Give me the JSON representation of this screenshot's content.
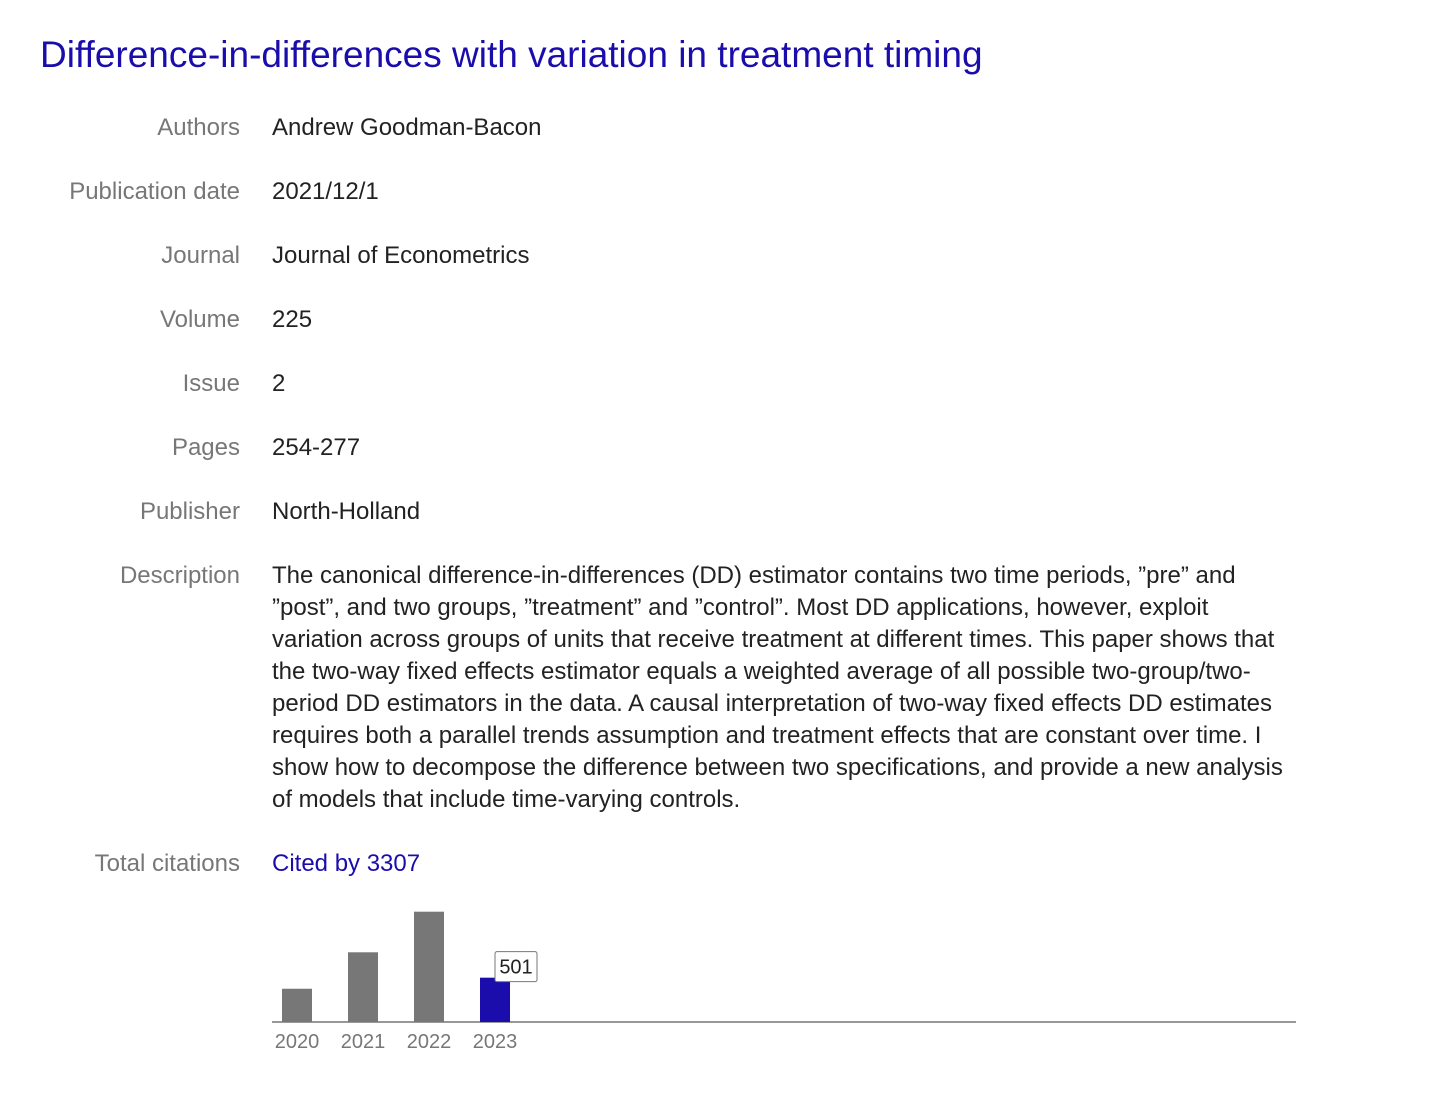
{
  "title": "Difference-in-differences with variation in treatment timing",
  "fields": [
    {
      "label": "Authors",
      "value": "Andrew Goodman-Bacon"
    },
    {
      "label": "Publication date",
      "value": "2021/12/1"
    },
    {
      "label": "Journal",
      "value": "Journal of Econometrics"
    },
    {
      "label": "Volume",
      "value": "225"
    },
    {
      "label": "Issue",
      "value": "2"
    },
    {
      "label": "Pages",
      "value": "254-277"
    },
    {
      "label": "Publisher",
      "value": "North-Holland"
    },
    {
      "label": "Description",
      "value": "The canonical difference-in-differences (DD) estimator contains two time periods, ”pre” and ”post”, and two groups, ”treatment” and ”control”. Most DD applications, however, exploit variation across groups of units that receive treatment at different times. This paper shows that the two-way fixed effects estimator equals a weighted average of all possible two-group/two-period DD estimators in the data. A causal interpretation of two-way fixed effects DD estimates requires both a parallel trends assumption and treatment effects that are constant over time. I show how to decompose the difference between two specifications, and provide a new analysis of models that include time-varying controls."
    }
  ],
  "citations": {
    "label": "Total citations",
    "link_text": "Cited by 3307"
  },
  "colors": {
    "link": "#1a0dab",
    "bar": "#777777",
    "bar_highlight": "#1a0dab"
  },
  "chart_data": {
    "type": "bar",
    "categories": [
      "2020",
      "2021",
      "2022",
      "2023"
    ],
    "values": [
      376,
      788,
      1247,
      501
    ],
    "highlighted": "2023",
    "tooltip": "501",
    "ylim": [
      0,
      1300
    ],
    "grid": false
  }
}
